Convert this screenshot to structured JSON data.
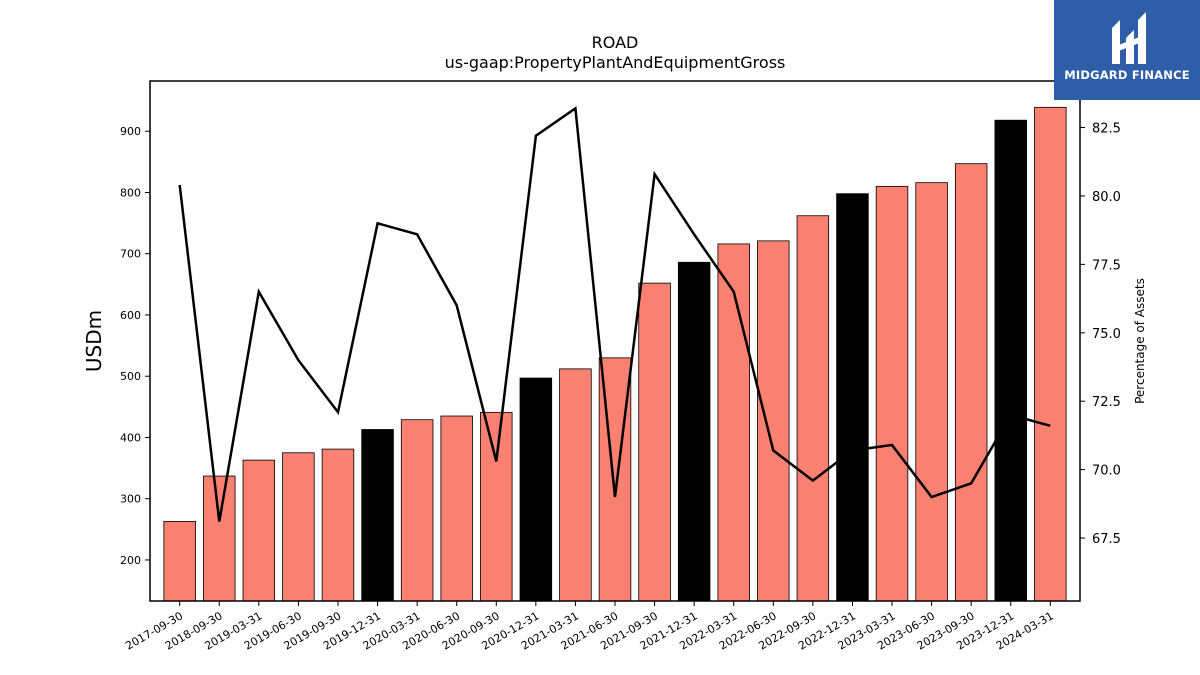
{
  "chart_data": {
    "type": "bar+line",
    "title": "ROAD",
    "subtitle": "us-gaap:PropertyPlantAndEquipmentGross",
    "ylabel_left": "USDm",
    "ylabel_right": "Percentage of Assets",
    "categories": [
      "2017-09-30",
      "2018-09-30",
      "2019-03-31",
      "2019-06-30",
      "2019-09-30",
      "2019-12-31",
      "2020-03-31",
      "2020-06-30",
      "2020-09-30",
      "2020-12-31",
      "2021-03-31",
      "2021-06-30",
      "2021-09-30",
      "2021-12-31",
      "2022-03-31",
      "2022-06-30",
      "2022-09-30",
      "2022-12-31",
      "2023-03-31",
      "2023-06-30",
      "2023-09-30",
      "2023-12-31",
      "2024-03-31"
    ],
    "bar_values": [
      263,
      337,
      363,
      375,
      381,
      413,
      429,
      435,
      441,
      497,
      512,
      530,
      652,
      686,
      716,
      721,
      762,
      798,
      810,
      816,
      847,
      918,
      939
    ],
    "bar_colors": [
      "#fa8072",
      "#fa8072",
      "#fa8072",
      "#fa8072",
      "#fa8072",
      "#000000",
      "#fa8072",
      "#fa8072",
      "#fa8072",
      "#000000",
      "#fa8072",
      "#fa8072",
      "#fa8072",
      "#000000",
      "#fa8072",
      "#fa8072",
      "#fa8072",
      "#000000",
      "#fa8072",
      "#fa8072",
      "#fa8072",
      "#000000",
      "#fa8072"
    ],
    "line_values": [
      80.4,
      68.1,
      76.5,
      74.0,
      72.1,
      79.0,
      78.6,
      76.0,
      70.3,
      82.2,
      83.2,
      69.0,
      80.8,
      78.6,
      76.5,
      70.7,
      69.6,
      70.7,
      70.9,
      69.0,
      69.5,
      72.0,
      71.6
    ],
    "ylim_left": [
      133,
      982
    ],
    "ylim_right": [
      65.2,
      84.2
    ],
    "yticks_left": [
      200,
      300,
      400,
      500,
      600,
      700,
      800,
      900
    ],
    "yticks_right": [
      "67.5",
      "70.0",
      "72.5",
      "75.0",
      "77.5",
      "80.0",
      "82.5"
    ],
    "colors": {
      "bar_default": "#fa8072",
      "bar_highlight": "#000000",
      "line": "#000000"
    }
  },
  "logo": {
    "text": "MIDGARD FINANCE",
    "color": "#2f5ea8"
  }
}
